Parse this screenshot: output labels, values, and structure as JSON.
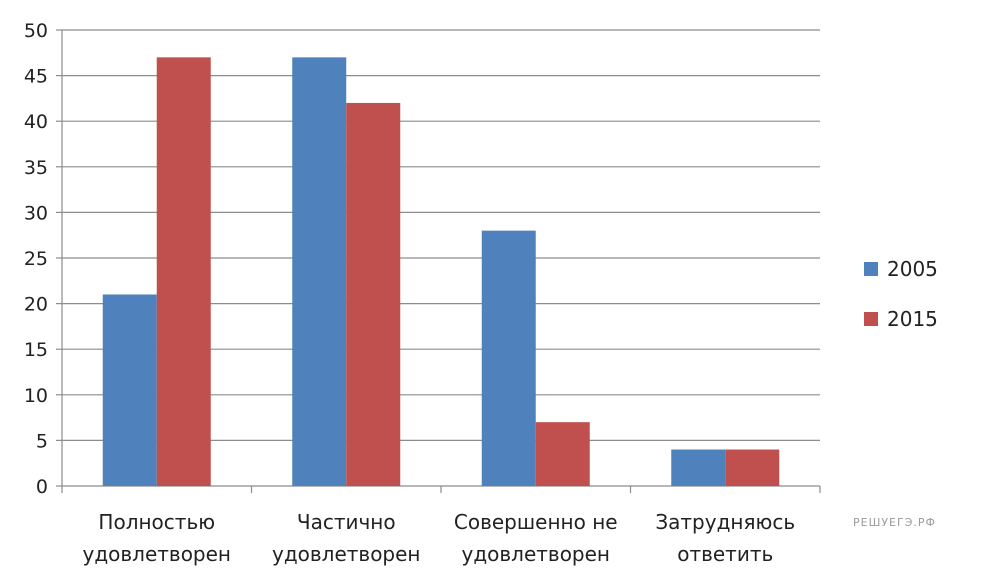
{
  "chart_data": {
    "type": "bar",
    "categories": [
      [
        "Полностью",
        "удовлетворен"
      ],
      [
        "Частично",
        "удовлетворен"
      ],
      [
        "Совершенно  не",
        "удовлетворен"
      ],
      [
        "Затрудняюсь",
        "ответить"
      ]
    ],
    "series": [
      {
        "name": "2005",
        "color": "#4f81bd",
        "values": [
          21,
          47,
          28,
          4
        ]
      },
      {
        "name": "2015",
        "color": "#c0504d",
        "values": [
          47,
          42,
          7,
          4
        ]
      }
    ],
    "ylim": [
      0,
      50
    ],
    "yticks": [
      "0",
      "5",
      "10",
      "15",
      "20",
      "25",
      "30",
      "35",
      "40",
      "45",
      "50"
    ],
    "grid": true,
    "legend_position": "right"
  },
  "watermark": "РЕШУЕГЭ.РФ"
}
